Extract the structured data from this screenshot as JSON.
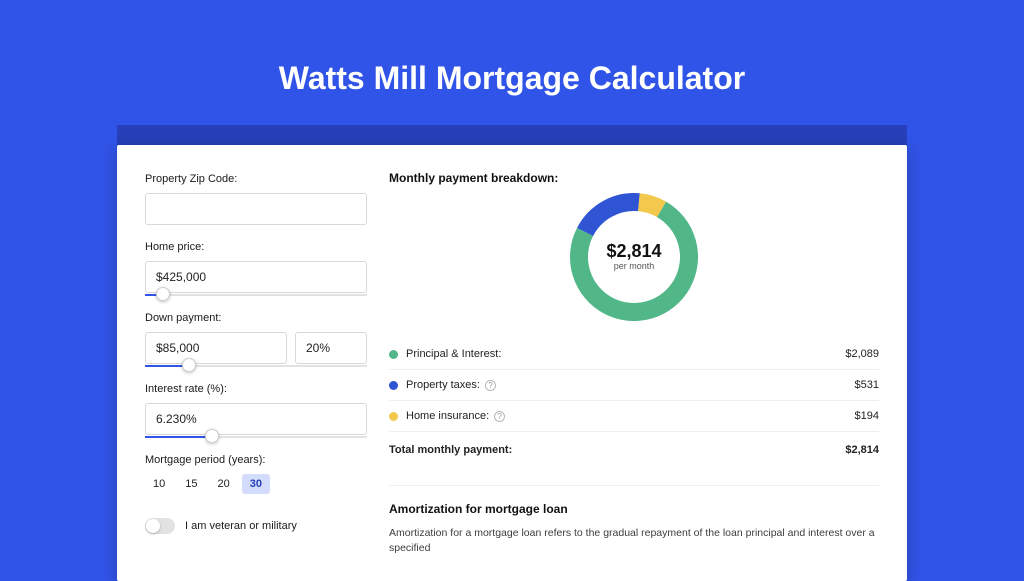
{
  "page_title": "Watts Mill Mortgage Calculator",
  "colors": {
    "page_bg": "#3154e8",
    "strip_bg": "#2640b9",
    "panel_bg": "#ffffff",
    "principal": "#52b788",
    "taxes": "#2f55d4",
    "insurance": "#f2c94c",
    "period_active_bg": "#d3dcfb",
    "period_active_text": "#2640b9"
  },
  "form": {
    "zip_label": "Property Zip Code:",
    "zip_value": "",
    "price_label": "Home price:",
    "price_value": "$425,000",
    "price_slider_pct": 8,
    "down_label": "Down payment:",
    "down_value": "$85,000",
    "down_pct_value": "20%",
    "down_slider_pct": 20,
    "rate_label": "Interest rate (%):",
    "rate_value": "6.230%",
    "rate_slider_pct": 30,
    "period_label": "Mortgage period (years):",
    "period_options": [
      "10",
      "15",
      "20",
      "30"
    ],
    "period_active_index": 3,
    "veteran_label": "I am veteran or military",
    "veteran_on": false
  },
  "breakdown": {
    "title": "Monthly payment breakdown:",
    "center_amount": "$2,814",
    "center_label": "per month",
    "donut": {
      "size": 128,
      "stroke_width": 18,
      "segments": [
        {
          "name": "principal",
          "pct": 74.2,
          "color": "#52b788"
        },
        {
          "name": "taxes",
          "pct": 18.9,
          "color": "#2f55d4"
        },
        {
          "name": "insurance",
          "pct": 6.9,
          "color": "#f2c94c"
        }
      ],
      "start_angle_deg": -60
    },
    "legend": [
      {
        "label": "Principal & Interest:",
        "value": "$2,089",
        "color": "#52b788",
        "info": false
      },
      {
        "label": "Property taxes:",
        "value": "$531",
        "color": "#2f55d4",
        "info": true
      },
      {
        "label": "Home insurance:",
        "value": "$194",
        "color": "#f2c94c",
        "info": true
      }
    ],
    "total_label": "Total monthly payment:",
    "total_value": "$2,814"
  },
  "amortization": {
    "title": "Amortization for mortgage loan",
    "text": "Amortization for a mortgage loan refers to the gradual repayment of the loan principal and interest over a specified"
  }
}
